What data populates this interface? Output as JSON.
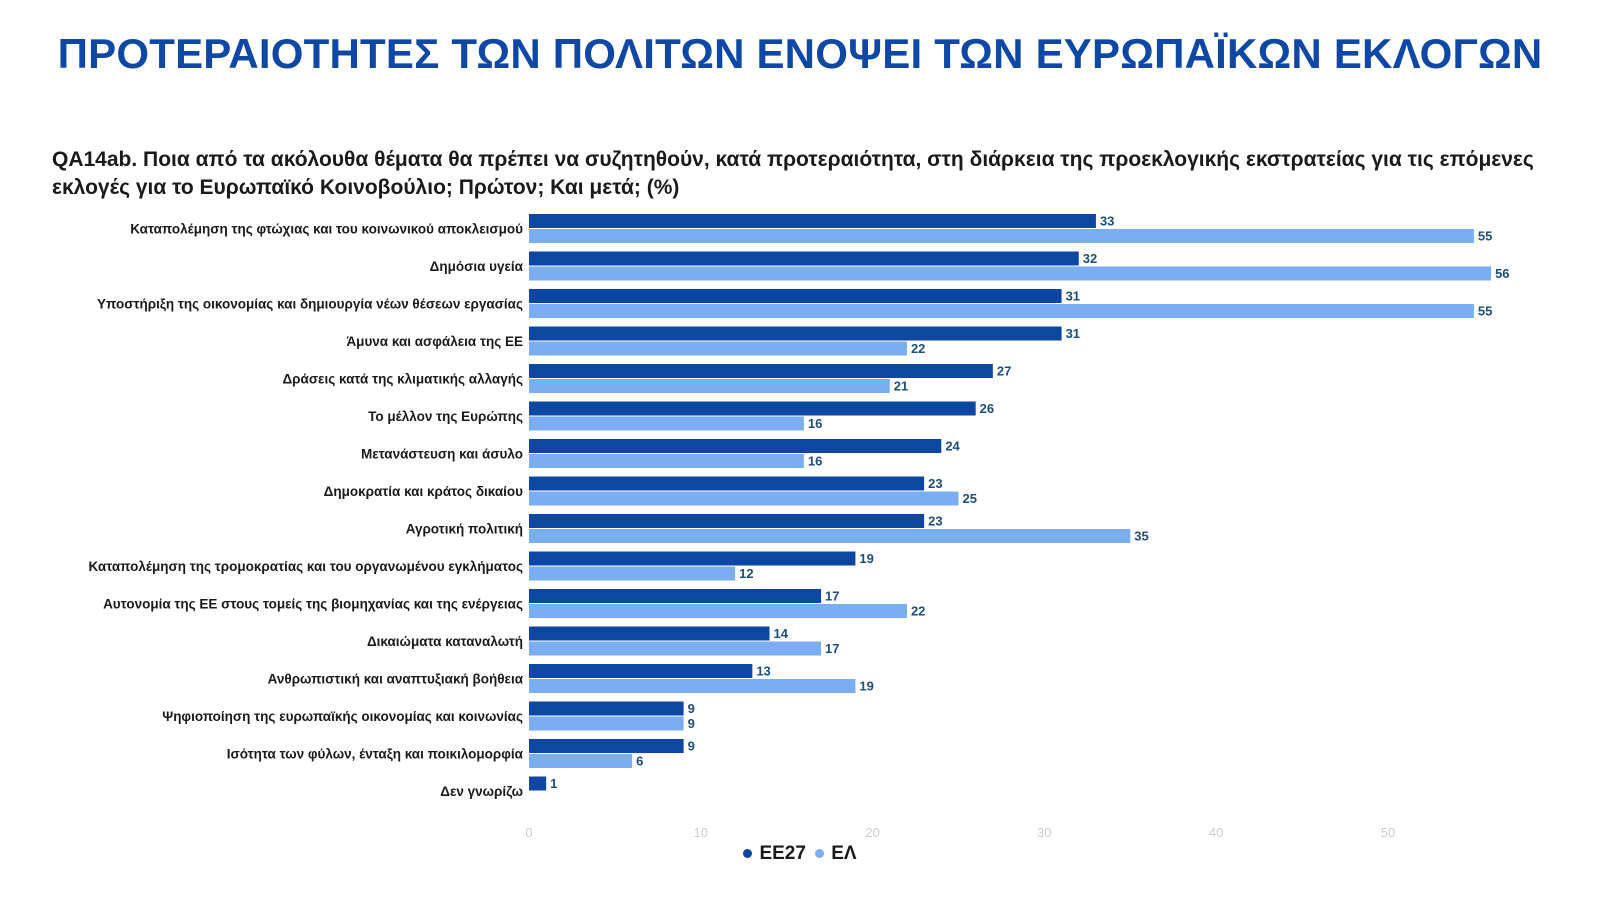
{
  "title": "ΠΡΟΤΕΡΑΙΟΤΗΤΕΣ ΤΩΝ ΠΟΛΙΤΩΝ ΕΝΟΨΕΙ ΤΩΝ ΕΥΡΩΠΑΪΚΩΝ ΕΚΛΟΓΩΝ",
  "question": "QA14ab. Ποια από τα ακόλουθα θέματα θα πρέπει να συζητηθούν, κατά προτεραιότητα, στη διάρκεια της προεκλογικής εκστρατείας για τις επόμενες εκλογές για το Ευρωπαϊκό Κοινοβούλιο; Πρώτον; Και μετά; (%)",
  "colors": {
    "title": "#0f47a5",
    "eu27": "#0e47a1",
    "el": "#7aaef0",
    "value_label": "#1f4e7a",
    "axis_tick": "#c8ccd3"
  },
  "chart_data": {
    "type": "bar",
    "orientation": "horizontal",
    "categories": [
      "Καταπολέμηση της φτώχιας και του κοινωνικού αποκλεισμού",
      "Δημόσια υγεία",
      "Υποστήριξη της οικονομίας και δημιουργία νέων θέσεων εργασίας",
      "Άμυνα και ασφάλεια της ΕΕ",
      "Δράσεις κατά της κλιματικής αλλαγής",
      "Το μέλλον της Ευρώπης",
      "Μετανάστευση και άσυλο",
      "Δημοκρατία και κράτος δικαίου",
      "Αγροτική πολιτική",
      "Καταπολέμηση της τρομοκρατίας και του οργανωμένου εγκλήματος",
      "Αυτονομία της ΕΕ στους τομείς της βιομηχανίας και της ενέργειας",
      "Δικαιώματα καταναλωτή",
      "Ανθρωπιστική και αναπτυξιακή βοήθεια",
      "Ψηφιοποίηση της ευρωπαϊκής οικονομίας και κοινωνίας",
      "Ισότητα των φύλων, ένταξη και ποικιλομορφία",
      "Δεν γνωρίζω"
    ],
    "series": [
      {
        "name": "ΕΕ27",
        "values": [
          33,
          32,
          31,
          31,
          27,
          26,
          24,
          23,
          23,
          19,
          17,
          14,
          13,
          9,
          9,
          1
        ]
      },
      {
        "name": "ΕΛ",
        "values": [
          55,
          56,
          55,
          22,
          21,
          16,
          16,
          25,
          35,
          12,
          22,
          17,
          19,
          9,
          6,
          null
        ]
      }
    ],
    "xlim": [
      0,
      56
    ],
    "xticks": [
      0,
      10,
      20,
      30,
      40,
      50
    ],
    "grid": false,
    "legend": "bottom-center"
  }
}
